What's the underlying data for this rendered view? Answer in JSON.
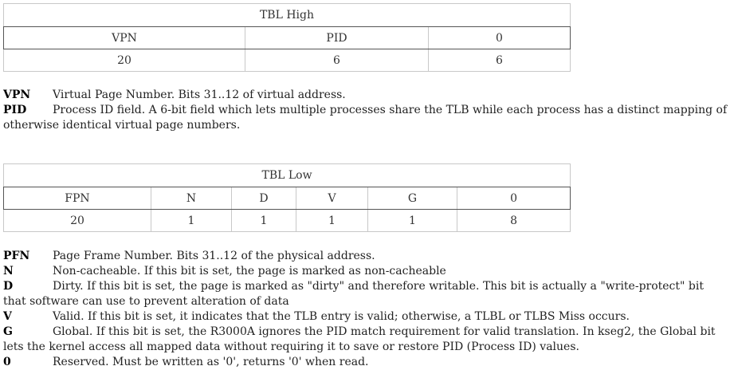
{
  "tbl_high": {
    "title": "TBL High",
    "headers": [
      "VPN",
      "PID",
      "0"
    ],
    "values": [
      "20",
      "6",
      "6"
    ]
  },
  "high_defs": [
    {
      "term": "VPN",
      "desc": "Virtual Page Number. Bits 31..12 of virtual address."
    },
    {
      "term": "PID",
      "desc": "Process ID field. A 6-bit field which lets multiple processes share the TLB while each process has a distinct mapping of otherwise identical virtual page numbers."
    }
  ],
  "tbl_low": {
    "title": "TBL Low",
    "headers": [
      "FPN",
      "N",
      "D",
      "V",
      "G",
      "0"
    ],
    "values": [
      "20",
      "1",
      "1",
      "1",
      "1",
      "8"
    ]
  },
  "low_defs": [
    {
      "term": "PFN",
      "desc": "Page Frame Number. Bits 31..12 of the physical address."
    },
    {
      "term": "N",
      "desc": "Non-cacheable. If this bit is set, the page is marked as non-cacheable"
    },
    {
      "term": "D",
      "desc": "Dirty. If this bit is set, the page is marked as \"dirty\" and therefore writable. This bit is actually a \"write-protect\" bit that software can use to prevent alteration of data"
    },
    {
      "term": "V",
      "desc": "Valid. If this bit is set, it indicates that the TLB entry is valid; otherwise, a TLBL or TLBS Miss occurs."
    },
    {
      "term": "G",
      "desc": "Global. If this bit is set, the R3000A ignores the PID match requirement for valid translation. In kseg2, the Global bit lets the kernel access all mapped data without requiring it to save or restore PID (Process ID) values."
    },
    {
      "term": "0",
      "desc": "Reserved. Must be written as '0', returns '0' when read."
    }
  ]
}
